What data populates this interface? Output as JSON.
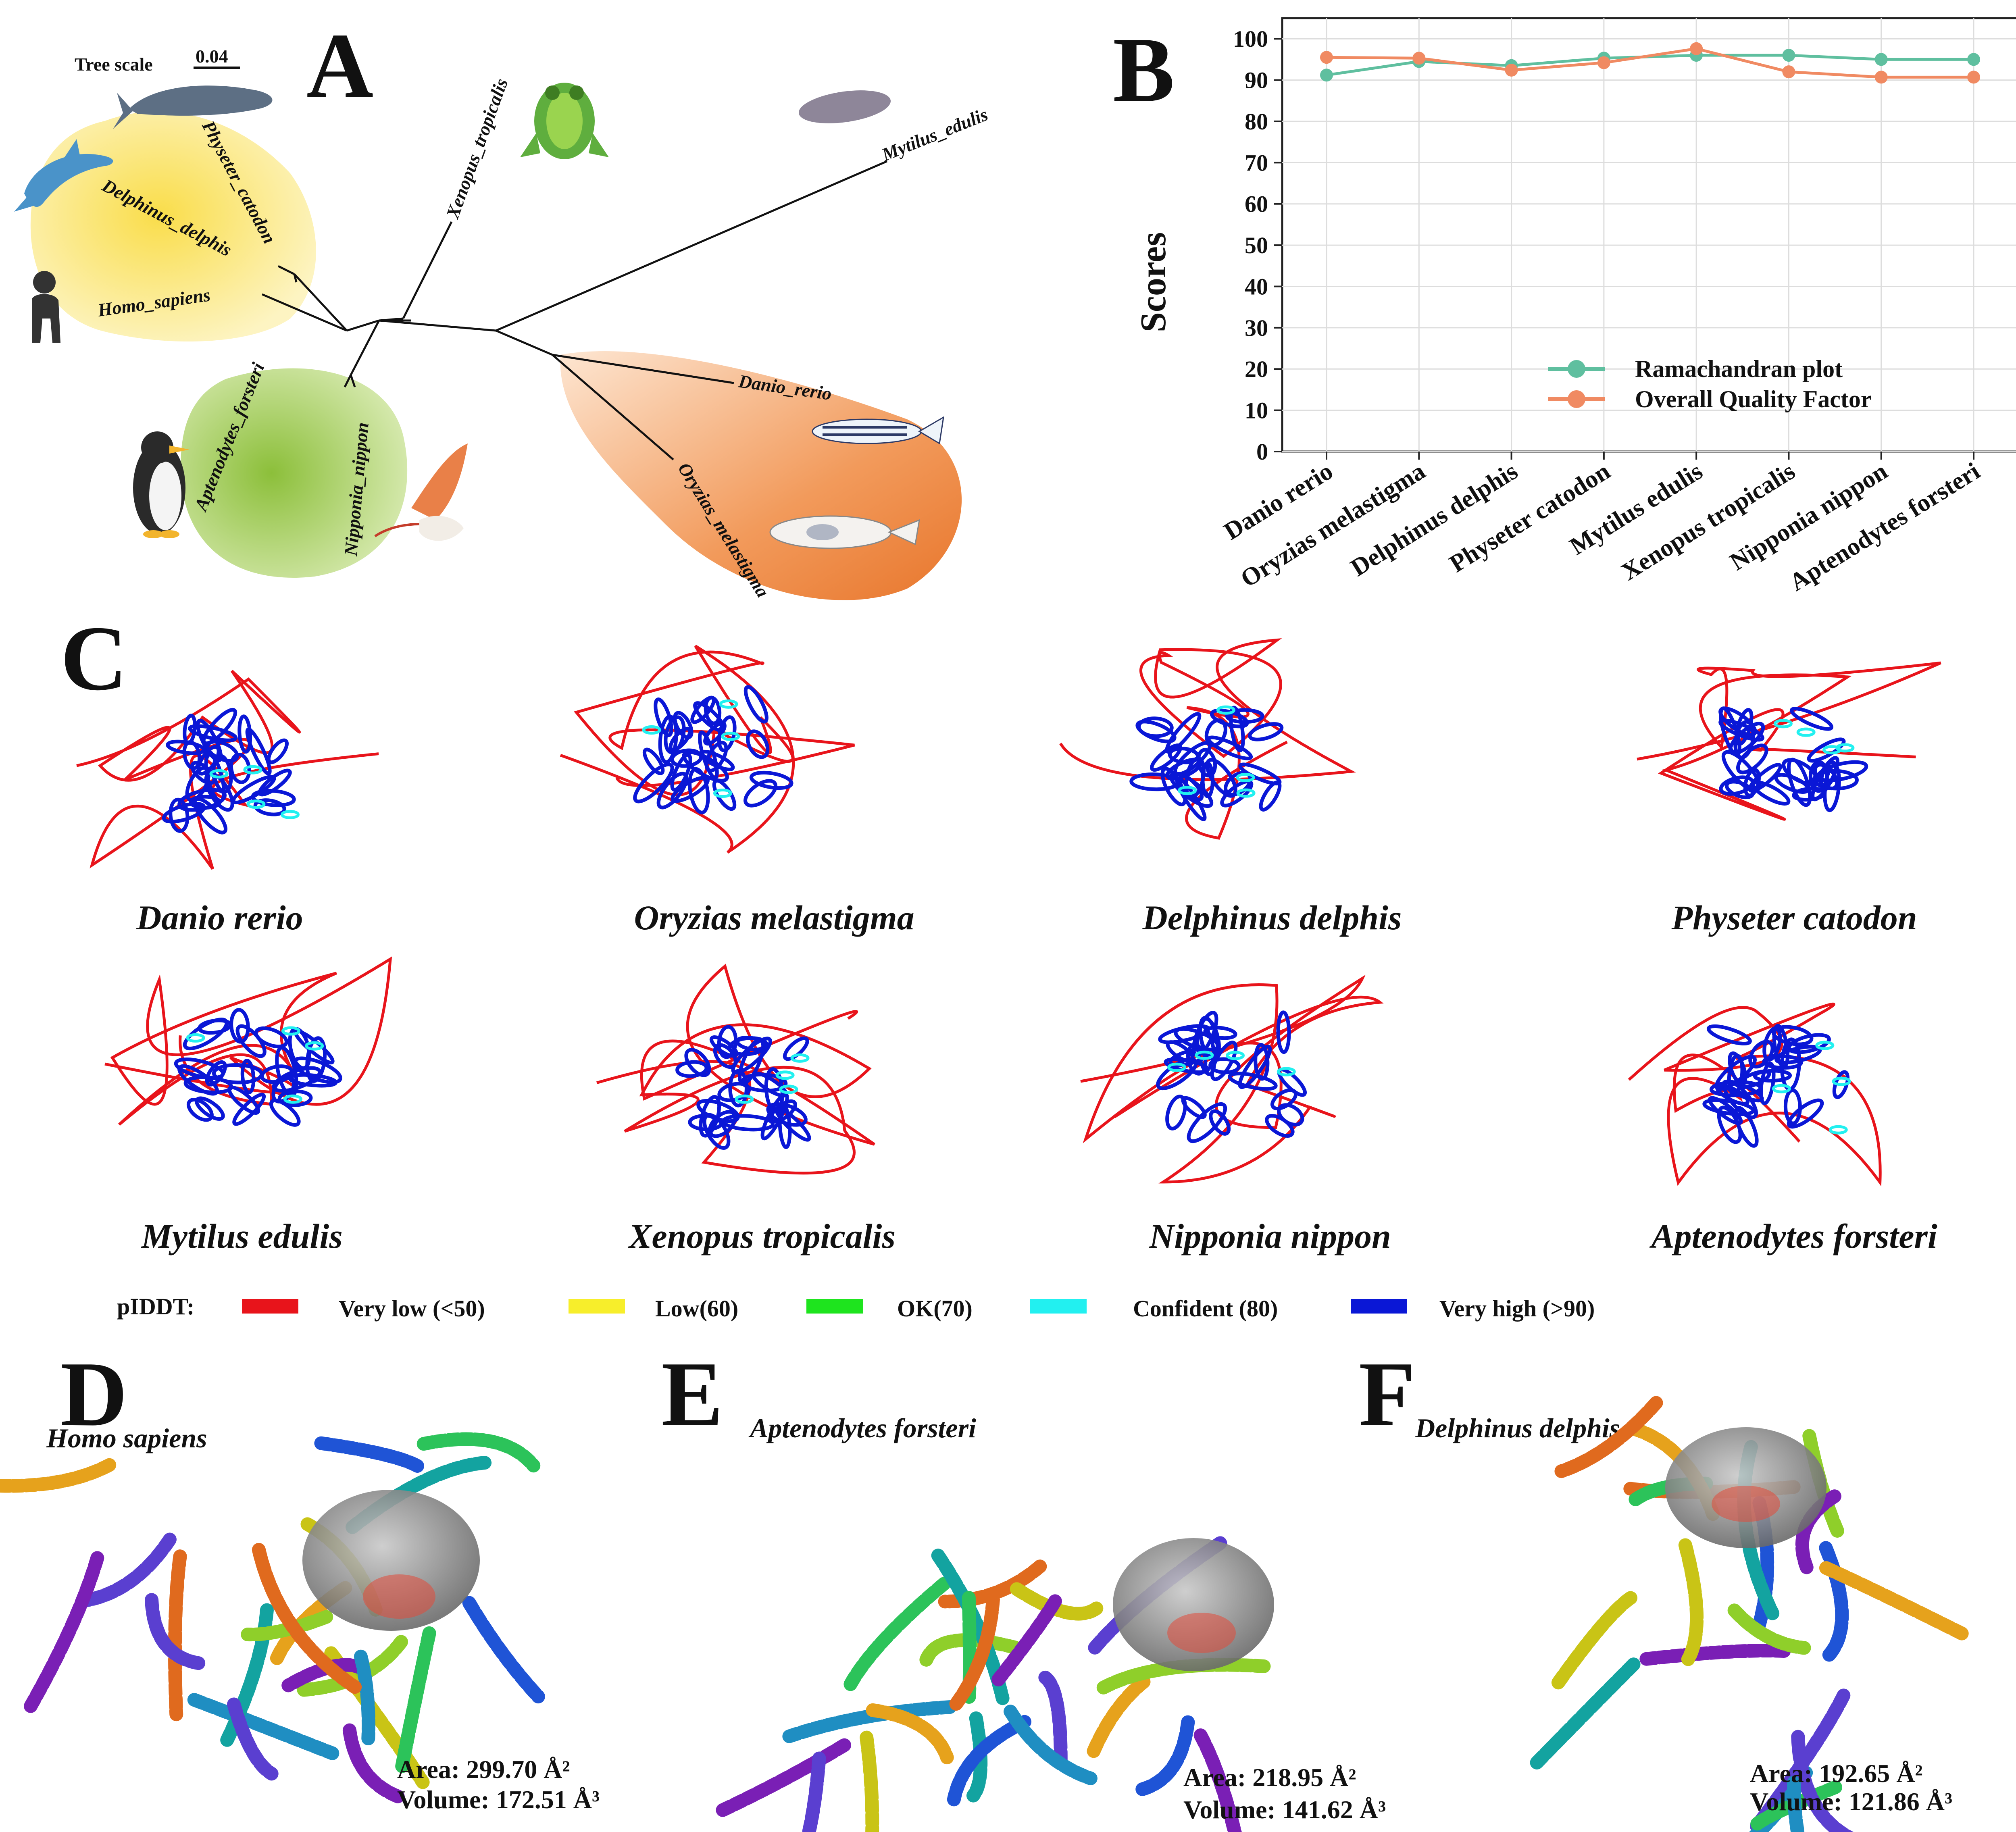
{
  "panels": {
    "A": {
      "letter": "A",
      "tree_scale_label": "Tree scale",
      "tree_scale_value": "0.04",
      "taxa": [
        "Physeter_catodon",
        "Delphinus_delphis",
        "Homo_sapiens",
        "Xenopus_tropicalis",
        "Mytilus_edulis",
        "Danio_rerio",
        "Oryzias_melastigma",
        "Aptenodytes_forsteri",
        "Nipponia_nippon"
      ],
      "clade_colors": {
        "mammals": "#fbe97a",
        "birds": "#a9cf5d",
        "fish": "#ee8a45"
      }
    },
    "B": {
      "letter": "B"
    },
    "C": {
      "letter": "C",
      "species": [
        "Danio rerio",
        "Oryzias melastigma",
        "Delphinus delphis",
        "Physeter catodon",
        "Mytilus edulis",
        "Xenopus tropicalis",
        "Nipponia nippon",
        "Aptenodytes forsteri"
      ],
      "legend_title": "pIDDT:",
      "legend": [
        {
          "label": "Very low (<50)",
          "color": "#e8141b"
        },
        {
          "label": "Low(60)",
          "color": "#f7ee2b"
        },
        {
          "label": "OK(70)",
          "color": "#1ee41e"
        },
        {
          "label": "Confident (80)",
          "color": "#22f0f0"
        },
        {
          "label": "Very high (>90)",
          "color": "#0a17d6"
        }
      ]
    },
    "D": {
      "letter": "D",
      "species": "Homo sapiens",
      "area": "Area: 299.70 Å²",
      "volume": "Volume: 172.51 Å³"
    },
    "E": {
      "letter": "E",
      "species": "Aptenodytes forsteri",
      "area": "Area: 218.95 Å²",
      "volume": "Volume: 141.62 Å³"
    },
    "F": {
      "letter": "F",
      "species": "Delphinus delphis",
      "area": "Area: 192.65 Å²",
      "volume": "Volume: 121.86 Å³"
    }
  },
  "chart_data": {
    "type": "line",
    "categories": [
      "Danio rerio",
      "Oryzias melastigma",
      "Delphinus delphis",
      "Physeter catodon",
      "Mytilus edulis",
      "Xenopus tropicalis",
      "Nipponia nippon",
      "Aptenodytes forsteri"
    ],
    "series": [
      {
        "name": "Ramachandran plot",
        "color": "#5fbf9f",
        "values": [
          91.2,
          94.5,
          93.5,
          95.3,
          96.0,
          96.0,
          95.0,
          95.0
        ]
      },
      {
        "name": "Overall Quality Factor",
        "color": "#f08a62",
        "values": [
          95.5,
          95.3,
          92.4,
          94.2,
          97.6,
          92.0,
          90.7,
          90.7
        ]
      }
    ],
    "ylabel": "Scores",
    "xlabel": "",
    "ylim": [
      0,
      105
    ],
    "yticks": [
      0,
      10,
      20,
      30,
      40,
      50,
      60,
      70,
      80,
      90,
      100
    ],
    "grid": true,
    "legend_position": "bottom-right"
  }
}
